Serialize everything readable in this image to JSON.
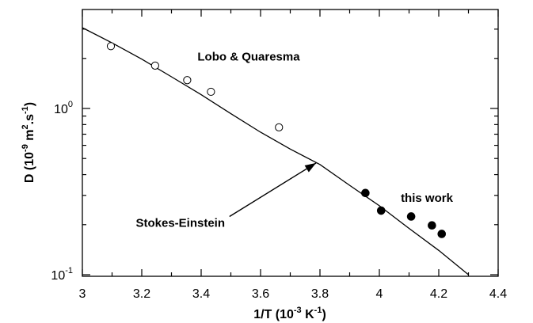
{
  "chart_data": {
    "type": "scatter",
    "xlabel": "1/T  (10",
    "xlabel_exp": "-3",
    "xlabel_unit": " K",
    "xlabel_unit_exp": "-1",
    "xlabel_close": ")",
    "ylabel": "D  (10",
    "ylabel_exp": "-9",
    "ylabel_mid": " m",
    "ylabel_exp2": "2",
    "ylabel_mid2": ".s",
    "ylabel_exp3": "-1",
    "ylabel_close": ")",
    "xlim": [
      3.0,
      4.4
    ],
    "ylim": [
      0.1,
      4.0
    ],
    "yscale": "log",
    "x_ticks": [
      3,
      3.2,
      3.4,
      3.6,
      3.8,
      4,
      4.2,
      4.4
    ],
    "x_tick_labels": [
      "3",
      "3.2",
      "3.4",
      "3.6",
      "3.8",
      "4",
      "4.2",
      "4.4"
    ],
    "y_major_ticks": [
      0.1,
      1.0
    ],
    "y_tick_labels": [
      {
        "value": 1.0,
        "base": "10",
        "exp": "0"
      },
      {
        "value": 0.1,
        "base": "10",
        "exp": "-1"
      }
    ],
    "grid": false,
    "series": [
      {
        "name": "Lobo & Quaresma",
        "marker": "open-circle",
        "x": [
          3.096,
          3.245,
          3.353,
          3.433,
          3.662
        ],
        "y": [
          2.37,
          1.81,
          1.48,
          1.26,
          0.77
        ]
      },
      {
        "name": "this work",
        "marker": "filled-circle",
        "x": [
          3.953,
          4.006,
          4.107,
          4.177,
          4.21
        ],
        "y": [
          0.31,
          0.243,
          0.224,
          0.198,
          0.176
        ]
      },
      {
        "name": "Stokes-Einstein",
        "marker": "line",
        "x": [
          3.0,
          3.1,
          3.2,
          3.3,
          3.4,
          3.5,
          3.6,
          3.7,
          3.8,
          3.9,
          4.0,
          4.1,
          4.2,
          4.3
        ],
        "y": [
          3.06,
          2.48,
          1.98,
          1.55,
          1.21,
          0.93,
          0.72,
          0.57,
          0.46,
          0.345,
          0.26,
          0.19,
          0.14,
          0.1
        ]
      }
    ],
    "annotations": [
      {
        "text": "Lobo & Quaresma",
        "x": 3.56,
        "y": 2.05
      },
      {
        "text": "this work",
        "x": 4.16,
        "y": 0.29
      },
      {
        "text": "Stokes-Einstein",
        "x": 3.33,
        "y": 0.205,
        "arrow_to": [
          3.787,
          0.47
        ]
      }
    ]
  }
}
